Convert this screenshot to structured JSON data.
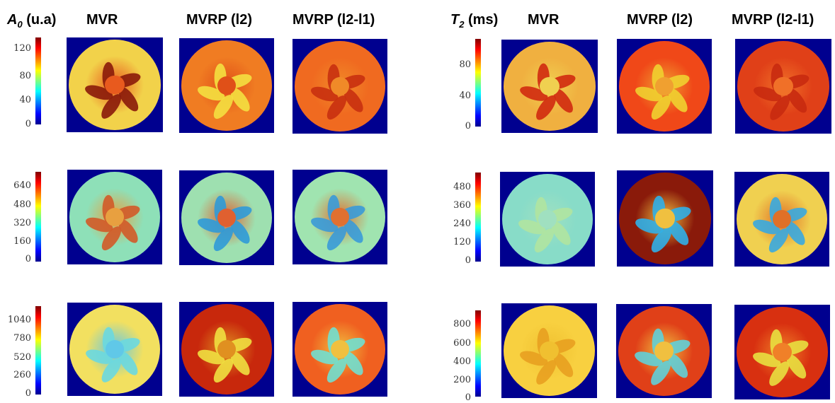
{
  "left_panel": {
    "quantity_symbol": "A",
    "quantity_subscript": "0",
    "quantity_unit": "(u.a)",
    "columns": [
      "MVR",
      "MVRP (l2)",
      "MVRP (l2-l1)"
    ],
    "rows": [
      {
        "ticks": [
          "120",
          "80",
          "40",
          "0"
        ],
        "cmax": 130
      },
      {
        "ticks": [
          "640",
          "480",
          "320",
          "160",
          "0"
        ],
        "cmax": 700
      },
      {
        "ticks": [
          "1040",
          "780",
          "520",
          "260",
          "0"
        ],
        "cmax": 1100
      }
    ]
  },
  "right_panel": {
    "quantity_symbol": "T",
    "quantity_subscript": "2",
    "quantity_unit": "(ms)",
    "columns": [
      "MVR",
      "MVRP (l2)",
      "MVRP (l2-l1)"
    ],
    "rows": [
      {
        "ticks": [
          "80",
          "40",
          "0"
        ],
        "cmax": 100
      },
      {
        "ticks": [
          "480",
          "360",
          "240",
          "120",
          "0"
        ],
        "cmax": 540
      },
      {
        "ticks": [
          "800",
          "600",
          "400",
          "200",
          "0"
        ],
        "cmax": 1000
      }
    ]
  },
  "colormap": "jet",
  "colors": {
    "background": "#00008f"
  }
}
